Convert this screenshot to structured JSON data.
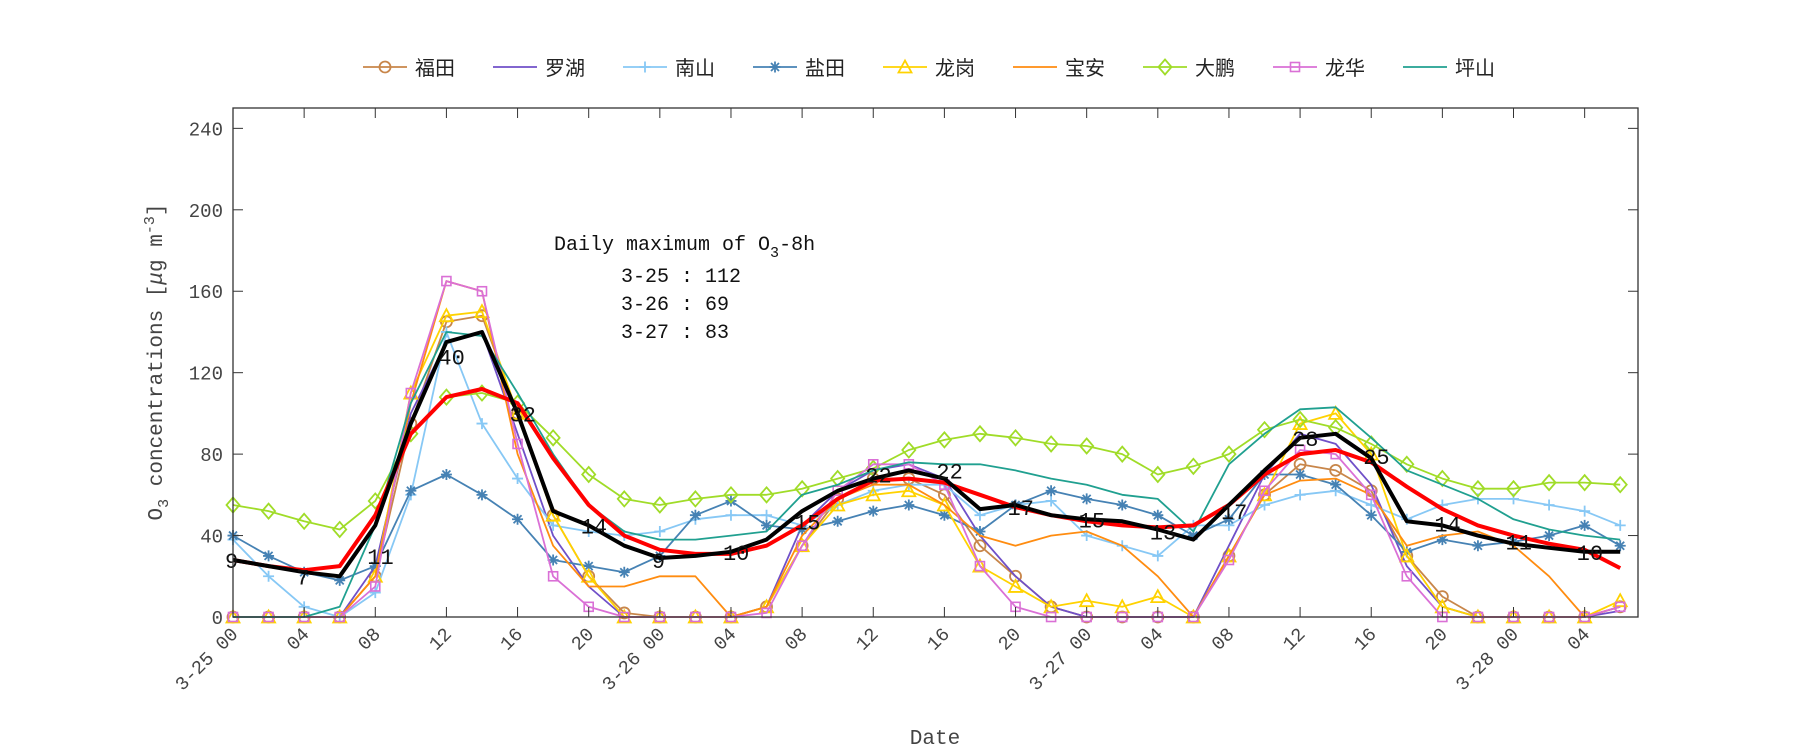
{
  "chart_data": {
    "type": "line",
    "title": "",
    "xlabel": "Date",
    "ylabel": "O3 concentrations [μg m-3]",
    "ylabel_parts": {
      "base": "O",
      "sub": "3",
      "mid": " concentrations [",
      "mu": "μ",
      "unit": "g m",
      "sup": "-3",
      "end": "]"
    },
    "ylim": [
      0,
      250
    ],
    "yticks": [
      0,
      40,
      80,
      120,
      160,
      200,
      240
    ],
    "xlim": [
      "3-25 00",
      "3-28 07"
    ],
    "xtick_labels": [
      "3-25 00",
      "04",
      "08",
      "12",
      "16",
      "20",
      "3-26 00",
      "04",
      "08",
      "12",
      "16",
      "20",
      "3-27 00",
      "04",
      "08",
      "12",
      "16",
      "20",
      "3-28 00",
      "04"
    ],
    "grid": false,
    "legend_placement": "top-outside",
    "x": [
      "3-25 00",
      "3-25 02",
      "3-25 04",
      "3-25 06",
      "3-25 08",
      "3-25 10",
      "3-25 12",
      "3-25 14",
      "3-25 16",
      "3-25 18",
      "3-25 20",
      "3-25 22",
      "3-26 00",
      "3-26 02",
      "3-26 04",
      "3-26 06",
      "3-26 08",
      "3-26 10",
      "3-26 12",
      "3-26 14",
      "3-26 16",
      "3-26 18",
      "3-26 20",
      "3-26 22",
      "3-27 00",
      "3-27 02",
      "3-27 04",
      "3-27 06",
      "3-27 08",
      "3-27 10",
      "3-27 12",
      "3-27 14",
      "3-27 16",
      "3-27 18",
      "3-27 20",
      "3-27 22",
      "3-28 00",
      "3-28 02",
      "3-28 04",
      "3-28 06"
    ],
    "series": [
      {
        "name": "福田",
        "color": "#C8864A",
        "marker": "circle",
        "values": [
          0,
          0,
          0,
          0,
          20,
          95,
          145,
          148,
          100,
          50,
          20,
          2,
          0,
          0,
          0,
          5,
          35,
          58,
          68,
          68,
          60,
          35,
          20,
          5,
          0,
          0,
          0,
          0,
          30,
          60,
          75,
          72,
          62,
          30,
          10,
          0,
          0,
          0,
          0,
          5
        ]
      },
      {
        "name": "罗湖",
        "color": "#7050C8",
        "marker": "none",
        "values": [
          0,
          0,
          0,
          0,
          25,
          100,
          135,
          140,
          90,
          40,
          15,
          0,
          0,
          0,
          0,
          5,
          45,
          62,
          72,
          75,
          68,
          40,
          20,
          5,
          0,
          0,
          0,
          0,
          35,
          70,
          90,
          85,
          65,
          25,
          5,
          0,
          0,
          0,
          0,
          3
        ]
      },
      {
        "name": "南山",
        "color": "#87C8F5",
        "marker": "plus",
        "values": [
          38,
          20,
          5,
          0,
          12,
          60,
          140,
          95,
          68,
          45,
          42,
          40,
          42,
          48,
          50,
          50,
          45,
          55,
          62,
          65,
          65,
          50,
          55,
          57,
          40,
          35,
          30,
          45,
          45,
          55,
          60,
          62,
          55,
          48,
          55,
          58,
          58,
          55,
          52,
          45
        ]
      },
      {
        "name": "盐田",
        "color": "#4682B4",
        "marker": "star",
        "values": [
          40,
          30,
          22,
          18,
          25,
          62,
          70,
          60,
          48,
          28,
          25,
          22,
          30,
          50,
          57,
          45,
          43,
          47,
          52,
          55,
          50,
          42,
          55,
          62,
          58,
          55,
          50,
          40,
          48,
          70,
          70,
          65,
          50,
          32,
          38,
          35,
          37,
          40,
          45,
          35
        ]
      },
      {
        "name": "龙岗",
        "color": "#FFD200",
        "marker": "triangle",
        "values": [
          0,
          0,
          0,
          0,
          20,
          110,
          148,
          150,
          100,
          50,
          20,
          0,
          0,
          0,
          0,
          5,
          35,
          55,
          60,
          62,
          55,
          25,
          15,
          5,
          8,
          5,
          10,
          0,
          30,
          60,
          95,
          100,
          80,
          30,
          5,
          0,
          0,
          0,
          0,
          8
        ]
      },
      {
        "name": "宝安",
        "color": "#FF8C10",
        "marker": "none",
        "values": [
          0,
          0,
          0,
          0,
          20,
          105,
          165,
          160,
          80,
          35,
          15,
          15,
          20,
          20,
          0,
          5,
          40,
          58,
          65,
          65,
          55,
          40,
          35,
          40,
          42,
          35,
          20,
          0,
          30,
          60,
          67,
          68,
          60,
          35,
          40,
          42,
          35,
          20,
          0,
          5
        ]
      },
      {
        "name": "大鹏",
        "color": "#A0DC28",
        "marker": "diamond",
        "values": [
          55,
          52,
          47,
          43,
          57,
          90,
          108,
          110,
          105,
          88,
          70,
          58,
          55,
          58,
          60,
          60,
          63,
          68,
          73,
          82,
          87,
          90,
          88,
          85,
          84,
          80,
          70,
          74,
          80,
          92,
          97,
          93,
          85,
          75,
          68,
          63,
          63,
          66,
          66,
          65
        ]
      },
      {
        "name": "龙华",
        "color": "#DA70D6",
        "marker": "square",
        "values": [
          0,
          0,
          0,
          0,
          15,
          110,
          165,
          160,
          85,
          20,
          5,
          0,
          0,
          0,
          0,
          2,
          35,
          62,
          75,
          75,
          65,
          25,
          5,
          0,
          0,
          0,
          0,
          0,
          28,
          62,
          82,
          80,
          60,
          20,
          0,
          0,
          0,
          0,
          0,
          5
        ]
      },
      {
        "name": "坪山",
        "color": "#20A090",
        "marker": "none",
        "values": [
          0,
          0,
          0,
          5,
          45,
          105,
          140,
          138,
          110,
          80,
          55,
          42,
          38,
          38,
          40,
          42,
          60,
          65,
          72,
          76,
          75,
          75,
          72,
          68,
          65,
          60,
          58,
          42,
          75,
          90,
          102,
          103,
          88,
          72,
          65,
          58,
          48,
          43,
          40,
          38
        ]
      },
      {
        "color": "#FF0000",
        "marker": "none",
        "width": 4,
        "values": [
          28,
          25,
          23,
          25,
          50,
          90,
          108,
          112,
          105,
          78,
          55,
          40,
          33,
          31,
          31,
          35,
          45,
          58,
          67,
          68,
          66,
          60,
          54,
          50,
          47,
          45,
          44,
          45,
          55,
          70,
          80,
          82,
          76,
          64,
          53,
          45,
          40,
          36,
          33,
          24
        ]
      },
      {
        "color": "#000000",
        "marker": "none",
        "width": 4,
        "values": [
          28,
          25,
          22,
          20,
          45,
          95,
          135,
          140,
          100,
          52,
          45,
          35,
          29,
          30,
          32,
          38,
          52,
          62,
          68,
          72,
          68,
          53,
          55,
          50,
          48,
          47,
          43,
          38,
          55,
          72,
          88,
          90,
          78,
          47,
          45,
          40,
          36,
          34,
          32,
          32
        ]
      }
    ],
    "annotations": [
      {
        "x": "3-25 00",
        "y": 28,
        "text": "9"
      },
      {
        "x": "3-25 04",
        "y": 20,
        "text": "7"
      },
      {
        "x": "3-25 08",
        "y": 30,
        "text": "11"
      },
      {
        "x": "3-25 12",
        "y": 128,
        "text": "40"
      },
      {
        "x": "3-25 16",
        "y": 100,
        "text": "32"
      },
      {
        "x": "3-25 20",
        "y": 45,
        "text": "14"
      },
      {
        "x": "3-26 00",
        "y": 28,
        "text": "9"
      },
      {
        "x": "3-26 04",
        "y": 32,
        "text": "10"
      },
      {
        "x": "3-26 08",
        "y": 47,
        "text": "15"
      },
      {
        "x": "3-26 12",
        "y": 70,
        "text": "22"
      },
      {
        "x": "3-26 16",
        "y": 72,
        "text": "22"
      },
      {
        "x": "3-26 20",
        "y": 54,
        "text": "17"
      },
      {
        "x": "3-27 00",
        "y": 48,
        "text": "15"
      },
      {
        "x": "3-27 04",
        "y": 42,
        "text": "13"
      },
      {
        "x": "3-27 08",
        "y": 52,
        "text": "17"
      },
      {
        "x": "3-27 12",
        "y": 88,
        "text": "28"
      },
      {
        "x": "3-27 16",
        "y": 79,
        "text": "25"
      },
      {
        "x": "3-27 20",
        "y": 46,
        "text": "14"
      },
      {
        "x": "3-28 00",
        "y": 37,
        "text": "11"
      },
      {
        "x": "3-28 04",
        "y": 32,
        "text": "10"
      }
    ],
    "textbox": {
      "title_base": "Daily maximum of O",
      "title_sub": "3",
      "title_end": "-8h",
      "lines": [
        "3-25 : 112",
        "3-26 : 69",
        "3-27 : 83"
      ]
    }
  }
}
